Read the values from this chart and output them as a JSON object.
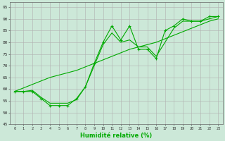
{
  "x": [
    0,
    1,
    2,
    3,
    4,
    5,
    6,
    7,
    8,
    9,
    10,
    11,
    12,
    13,
    14,
    15,
    16,
    17,
    18,
    19,
    20,
    21,
    22,
    23
  ],
  "y_main": [
    59,
    59,
    59,
    56,
    53,
    53,
    53,
    56,
    61,
    71,
    80,
    87,
    81,
    87,
    77,
    77,
    73,
    85,
    87,
    90,
    89,
    89,
    91,
    91
  ],
  "y_smooth1": [
    59,
    59,
    59.5,
    56.5,
    54,
    54,
    54,
    55.5,
    61,
    70,
    79,
    84,
    80,
    81,
    78,
    78,
    74,
    80,
    86,
    89,
    89,
    89,
    90,
    91
  ],
  "y_linear": [
    59,
    60.5,
    62,
    63.5,
    65,
    66,
    67,
    68,
    69.5,
    71,
    72.5,
    74,
    75.5,
    77,
    78,
    79,
    80,
    81.5,
    83,
    84.5,
    86,
    87.5,
    89,
    90
  ],
  "background_color": "#cce8d8",
  "grid_color": "#b0b0b0",
  "line_color": "#00aa00",
  "xlabel": "Humidité relative (%)",
  "xlim": [
    -0.5,
    23.5
  ],
  "ylim": [
    45,
    97
  ],
  "yticks": [
    45,
    50,
    55,
    60,
    65,
    70,
    75,
    80,
    85,
    90,
    95
  ],
  "xticks": [
    0,
    1,
    2,
    3,
    4,
    5,
    6,
    7,
    8,
    9,
    10,
    11,
    12,
    13,
    14,
    15,
    16,
    17,
    18,
    19,
    20,
    21,
    22,
    23
  ]
}
